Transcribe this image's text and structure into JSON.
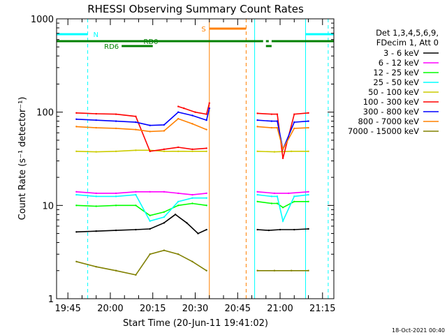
{
  "chart_data": {
    "type": "line",
    "title": "RHESSI Observing Summary Count Rates",
    "xlabel": "Start Time (20-Jun-11 19:41:02)",
    "ylabel": "Count Rate (s⁻¹ detector⁻¹)",
    "y_scale": "log",
    "ylim": [
      1,
      1000
    ],
    "xlim": [
      "19:41",
      "21:19"
    ],
    "x_ticks": [
      "19:45",
      "20:00",
      "20:15",
      "20:30",
      "20:45",
      "21:00",
      "21:15"
    ],
    "y_ticks": [
      "1",
      "10",
      "100",
      "1000"
    ],
    "legend_position": "top-right",
    "legend_header": [
      "Det 1,3,4,5,6,9,",
      "FDecim 1, Att 0"
    ],
    "timestamp": "18-Oct-2021 00:40",
    "series": [
      {
        "name": "3 - 6 keV",
        "color": "#000000",
        "segments": [
          {
            "t": [
              "19:48",
              "19:55",
              "20:02",
              "20:09",
              "20:14",
              "20:19",
              "20:23",
              "20:27",
              "20:31",
              "20:34"
            ],
            "v": [
              5.2,
              5.3,
              5.4,
              5.5,
              5.6,
              6.5,
              8.0,
              6.5,
              5.0,
              5.5
            ]
          },
          {
            "t": [
              "20:52",
              "20:56",
              "21:00",
              "21:05",
              "21:10"
            ],
            "v": [
              5.5,
              5.4,
              5.5,
              5.5,
              5.6
            ]
          }
        ]
      },
      {
        "name": "6 - 12 keV",
        "color": "#ff00ff",
        "segments": [
          {
            "t": [
              "19:48",
              "19:55",
              "20:02",
              "20:09",
              "20:14",
              "20:19",
              "20:24",
              "20:29",
              "20:34"
            ],
            "v": [
              14,
              13.5,
              13.5,
              14,
              14,
              14,
              13.5,
              13,
              13.5
            ]
          },
          {
            "t": [
              "20:52",
              "20:58",
              "21:03",
              "21:10"
            ],
            "v": [
              14,
              13.5,
              13.5,
              14
            ]
          }
        ]
      },
      {
        "name": "12 - 25 keV",
        "color": "#00ff00",
        "segments": [
          {
            "t": [
              "19:48",
              "19:55",
              "20:02",
              "20:09",
              "20:14",
              "20:19",
              "20:24",
              "20:29",
              "20:34"
            ],
            "v": [
              10,
              9.8,
              10,
              10,
              7.8,
              8.5,
              10,
              10.5,
              10
            ]
          },
          {
            "t": [
              "20:52",
              "20:57",
              "20:59",
              "21:01",
              "21:05",
              "21:10"
            ],
            "v": [
              11,
              10.5,
              10.5,
              9.5,
              11,
              11
            ]
          }
        ]
      },
      {
        "name": "25 - 50 keV",
        "color": "#00ffff",
        "segments": [
          {
            "t": [
              "19:48",
              "19:55",
              "20:02",
              "20:09",
              "20:14",
              "20:19",
              "20:24",
              "20:29",
              "20:34"
            ],
            "v": [
              13,
              12.5,
              12.5,
              13,
              6.8,
              7.5,
              11,
              12,
              12
            ]
          },
          {
            "t": [
              "20:52",
              "20:57",
              "20:59",
              "21:01",
              "21:05",
              "21:10"
            ],
            "v": [
              13,
              12.5,
              12.5,
              6.8,
              12.5,
              13
            ]
          }
        ]
      },
      {
        "name": "50 - 100 keV",
        "color": "#cccc00",
        "segments": [
          {
            "t": [
              "19:48",
              "19:55",
              "20:02",
              "20:09",
              "20:14",
              "20:19",
              "20:24",
              "20:29",
              "20:34"
            ],
            "v": [
              38,
              37.5,
              38,
              39,
              39,
              38,
              38,
              38,
              38
            ]
          },
          {
            "t": [
              "20:52",
              "20:58",
              "21:04",
              "21:10"
            ],
            "v": [
              38,
              37.5,
              38,
              38
            ]
          }
        ]
      },
      {
        "name": "100 - 300 keV",
        "color": "#ff0000",
        "segments": [
          {
            "t": [
              "19:48",
              "19:55",
              "20:02",
              "20:09",
              "20:14",
              "20:19",
              "20:24",
              "20:29",
              "20:34"
            ],
            "v": [
              98,
              96,
              95,
              90,
              38,
              40,
              42,
              40,
              41
            ]
          },
          {
            "t": [
              "20:24",
              "20:26",
              "20:30",
              "20:34",
              "20:35"
            ],
            "v": [
              115,
              110,
              100,
              95,
              125
            ]
          },
          {
            "t": [
              "20:52",
              "20:57",
              "20:59",
              "21:01",
              "21:05",
              "21:10"
            ],
            "v": [
              97,
              95,
              95,
              32,
              95,
              98
            ]
          }
        ]
      },
      {
        "name": "300 - 800 keV",
        "color": "#0000ff",
        "segments": [
          {
            "t": [
              "19:48",
              "19:55",
              "20:02",
              "20:09",
              "20:14",
              "20:19",
              "20:24",
              "20:29",
              "20:34",
              "20:35"
            ],
            "v": [
              84,
              82,
              80,
              78,
              72,
              73,
              100,
              92,
              82,
              110
            ]
          },
          {
            "t": [
              "20:52",
              "20:57",
              "20:59",
              "21:01",
              "21:05",
              "21:10"
            ],
            "v": [
              82,
              80,
              80,
              40,
              78,
              80
            ]
          }
        ]
      },
      {
        "name": "800 - 7000 keV",
        "color": "#ff8000",
        "segments": [
          {
            "t": [
              "19:48",
              "19:55",
              "20:02",
              "20:09",
              "20:14",
              "20:19",
              "20:24",
              "20:29",
              "20:34"
            ],
            "v": [
              70,
              68,
              67,
              65,
              62,
              63,
              85,
              75,
              65
            ]
          },
          {
            "t": [
              "20:52",
              "20:57",
              "20:59",
              "21:01",
              "21:05",
              "21:10"
            ],
            "v": [
              70,
              68,
              68,
              40,
              67,
              68
            ]
          }
        ]
      },
      {
        "name": "7000 - 15000 keV",
        "color": "#808000",
        "segments": [
          {
            "t": [
              "19:48",
              "19:55",
              "20:02",
              "20:09",
              "20:14",
              "20:19",
              "20:24",
              "20:29",
              "20:34"
            ],
            "v": [
              2.5,
              2.2,
              2.0,
              1.8,
              3.0,
              3.3,
              3.0,
              2.5,
              2.0
            ]
          },
          {
            "t": [
              "20:52",
              "20:58",
              "21:04",
              "21:10"
            ],
            "v": [
              2.0,
              2.0,
              2.0,
              2.0
            ]
          }
        ]
      }
    ],
    "vertical_lines": [
      {
        "t": "19:41",
        "color": "#00ffff",
        "style": "solid"
      },
      {
        "t": "19:52",
        "color": "#00ffff",
        "style": "dashed"
      },
      {
        "t": "20:35",
        "color": "#ff8000",
        "style": "solid"
      },
      {
        "t": "20:48",
        "color": "#ff8000",
        "style": "dashed"
      },
      {
        "t": "20:51",
        "color": "#00ffff",
        "style": "solid"
      },
      {
        "t": "21:09",
        "color": "#00ffff",
        "style": "solid"
      },
      {
        "t": "21:17",
        "color": "#00ffff",
        "style": "dashed"
      }
    ],
    "flag_bars": [
      {
        "label": "N",
        "color": "#00ffff",
        "level": 1,
        "spans": [
          [
            "19:41",
            "19:52"
          ],
          [
            "21:09",
            "21:19"
          ]
        ]
      },
      {
        "label": "S",
        "color": "#ff8000",
        "level": 0,
        "spans": [
          [
            "20:35",
            "20:48"
          ]
        ]
      },
      {
        "label": "RD0",
        "color": "#008000",
        "level": 2,
        "spans": [
          [
            "19:41",
            "20:54"
          ],
          [
            "20:55",
            "20:56"
          ],
          [
            "20:57",
            "21:19"
          ]
        ]
      },
      {
        "label": "RD6",
        "color": "#008000",
        "level": 3,
        "spans": [
          [
            "20:04",
            "20:15"
          ],
          [
            "20:55",
            "20:57"
          ]
        ]
      }
    ]
  }
}
